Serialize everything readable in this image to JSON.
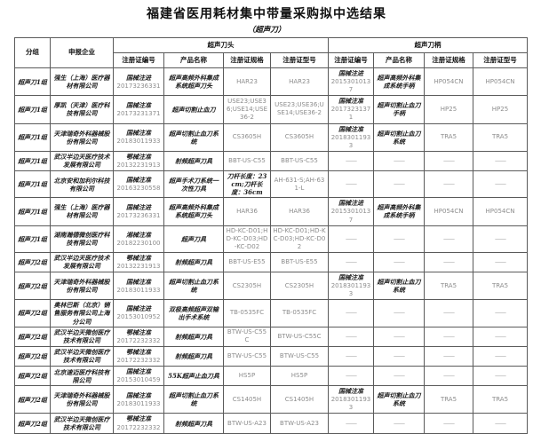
{
  "page": {
    "title": "福建省医用耗材集中带量采购拟中选结果",
    "subtitle": "（超声刀）"
  },
  "table": {
    "col_groups": {
      "group": "分组",
      "company": "申报企业",
      "head": "超声刀头",
      "handle": "超声刀柄"
    },
    "sub_headers": {
      "cert": "注册证编号",
      "name": "产品名称",
      "spec": "注册证规格",
      "model": "注册证型号"
    },
    "empty_marker": "——",
    "rows": [
      {
        "group": "超声刀1组",
        "company": "强生（上海）医疗器材有限公司",
        "head": {
          "cert_type": "国械注进",
          "cert_no": "20173236331",
          "name": "超声高频外科集成系统超声刀头",
          "spec": "HAR23",
          "model": "HAR23"
        },
        "handle": {
          "cert_type": "国械注进",
          "cert_no": "20153010137",
          "name": "超声高频外科集成系统手柄",
          "spec": "HP054CN",
          "model": "HP054CN"
        }
      },
      {
        "group": "超声刀1组",
        "company": "厚凯（天津）医疗科技有限公司",
        "head": {
          "cert_type": "国械注准",
          "cert_no": "20173231371",
          "name": "超声切割止血刀",
          "spec": "USE23;USE36;USE14;USE36-2",
          "model": "USE23;USE36;USE14;USE36-2"
        },
        "handle": {
          "cert_type": "国械注准",
          "cert_no": "20173231371",
          "name": "超声切割止血刀手柄",
          "spec": "HP25",
          "model": "HP25"
        }
      },
      {
        "group": "超声刀1组",
        "company": "天津瑞奇外科器械股份有限公司",
        "head": {
          "cert_type": "国械注准",
          "cert_no": "20183011933",
          "name": "超声切割止血刀系统",
          "spec": "CS3605H",
          "model": "CS3605H"
        },
        "handle": {
          "cert_type": "国械注准",
          "cert_no": "20183011933",
          "name": "超声切割止血刀系统",
          "spec": "TRA5",
          "model": "TRA5"
        }
      },
      {
        "group": "超声刀1组",
        "company": "武汉半边天医疗技术发展有限公司",
        "head": {
          "cert_type": "鄂械注准",
          "cert_no": "20132231913",
          "name": "射频超声刀具",
          "spec": "BBT-US-C55",
          "model": "BBT-US-C55"
        },
        "handle": {
          "cert_type": "——",
          "cert_no": "",
          "name": "——",
          "spec": "——",
          "model": "——"
        }
      },
      {
        "group": "超声刀1组",
        "company": "北京安和加利尔科技有限公司",
        "head": {
          "cert_type": "国械注准",
          "cert_no": "20163230558",
          "name": "超声手术刀系统一次性刀具",
          "spec": "刀杆长度：23cm;刀杆长度：36cm",
          "model": "AH-631-S;AH-631-L"
        },
        "handle": {
          "cert_type": "——",
          "cert_no": "",
          "name": "——",
          "spec": "——",
          "model": "——"
        }
      },
      {
        "group": "超声刀1组",
        "company": "强生（上海）医疗器材有限公司",
        "head": {
          "cert_type": "国械注进",
          "cert_no": "20173236331",
          "name": "超声高频外科集成系统超声刀头",
          "spec": "HAR36",
          "model": "HAR36"
        },
        "handle": {
          "cert_type": "国械注进",
          "cert_no": "20153010137",
          "name": "超声高频外科集成系统手柄",
          "spec": "HP054CN",
          "model": "HP054CN"
        }
      },
      {
        "group": "超声刀1组",
        "company": "湖南瀚德微创医疗科技有限公司",
        "head": {
          "cert_type": "湘械注准",
          "cert_no": "20182230100",
          "name": "超声刀具",
          "spec": "HD-KC-D01;HD-KC-D03;HD-KC-D02",
          "model": "HD-KC-D01;HD-KC-D03;HD-KC-D02"
        },
        "handle": {
          "cert_type": "——",
          "cert_no": "",
          "name": "——",
          "spec": "——",
          "model": "——"
        }
      },
      {
        "group": "超声刀2组",
        "company": "武汉半边天医疗技术发展有限公司",
        "head": {
          "cert_type": "鄂械注准",
          "cert_no": "20132231913",
          "name": "射频超声刀具",
          "spec": "BBT-US-E55",
          "model": "BBT-US-E55"
        },
        "handle": {
          "cert_type": "——",
          "cert_no": "",
          "name": "——",
          "spec": "——",
          "model": "——"
        }
      },
      {
        "group": "超声刀2组",
        "company": "天津瑞奇外科器械股份有限公司",
        "head": {
          "cert_type": "国械注准",
          "cert_no": "20183011933",
          "name": "超声切割止血刀系统",
          "spec": "CS2305H",
          "model": "CS2305H"
        },
        "handle": {
          "cert_type": "国械注准",
          "cert_no": "20183011933",
          "name": "超声切割止血刀系统",
          "spec": "TRA5",
          "model": "TRA5"
        }
      },
      {
        "group": "超声刀2组",
        "company": "奥林巴斯（北京）销售服务有限公司上海分公司",
        "head": {
          "cert_type": "国械注进",
          "cert_no": "20153010952",
          "name": "双极高频超声双输出手术系统",
          "spec": "TB-0535FC",
          "model": "TB-0535FC"
        },
        "handle": {
          "cert_type": "——",
          "cert_no": "",
          "name": "——",
          "spec": "——",
          "model": "——"
        }
      },
      {
        "group": "超声刀2组",
        "company": "武汉半边天微创医疗技术有限公司",
        "head": {
          "cert_type": "鄂械注准",
          "cert_no": "20172232332",
          "name": "射频超声刀具",
          "spec": "BTW-US-C55C",
          "model": "BTW-US-C55C"
        },
        "handle": {
          "cert_type": "——",
          "cert_no": "",
          "name": "——",
          "spec": "——",
          "model": "——"
        }
      },
      {
        "group": "超声刀2组",
        "company": "武汉半边天微创医疗技术有限公司",
        "head": {
          "cert_type": "鄂械注准",
          "cert_no": "20172232332",
          "name": "射频超声刀具",
          "spec": "BTW-US-C55",
          "model": "BTW-US-C55"
        },
        "handle": {
          "cert_type": "——",
          "cert_no": "",
          "name": "——",
          "spec": "——",
          "model": "——"
        }
      },
      {
        "group": "超声刀2组",
        "company": "北京速迈医疗科技有限公司",
        "head": {
          "cert_type": "国械注准",
          "cert_no": "20153010459",
          "name": "55K超声止血刀具",
          "spec": "HS5P",
          "model": "HS5P"
        },
        "handle": {
          "cert_type": "——",
          "cert_no": "",
          "name": "——",
          "spec": "——",
          "model": "——"
        }
      },
      {
        "group": "超声刀2组",
        "company": "天津瑞奇外科器械股份有限公司",
        "head": {
          "cert_type": "国械注准",
          "cert_no": "20183011933",
          "name": "超声切割止血刀系统",
          "spec": "CS1405H",
          "model": "CS1405H"
        },
        "handle": {
          "cert_type": "国械注准",
          "cert_no": "20183011933",
          "name": "超声切割止血刀系统",
          "spec": "TRA5",
          "model": "TRA5"
        }
      },
      {
        "group": "超声刀2组",
        "company": "武汉半边天微创医疗技术有限公司",
        "head": {
          "cert_type": "鄂械注准",
          "cert_no": "20172232332",
          "name": "射频超声刀具",
          "spec": "BTW-US-A23",
          "model": "BTW-US-A23"
        },
        "handle": {
          "cert_type": "——",
          "cert_no": "",
          "name": "——",
          "spec": "——",
          "model": "——"
        }
      }
    ]
  }
}
